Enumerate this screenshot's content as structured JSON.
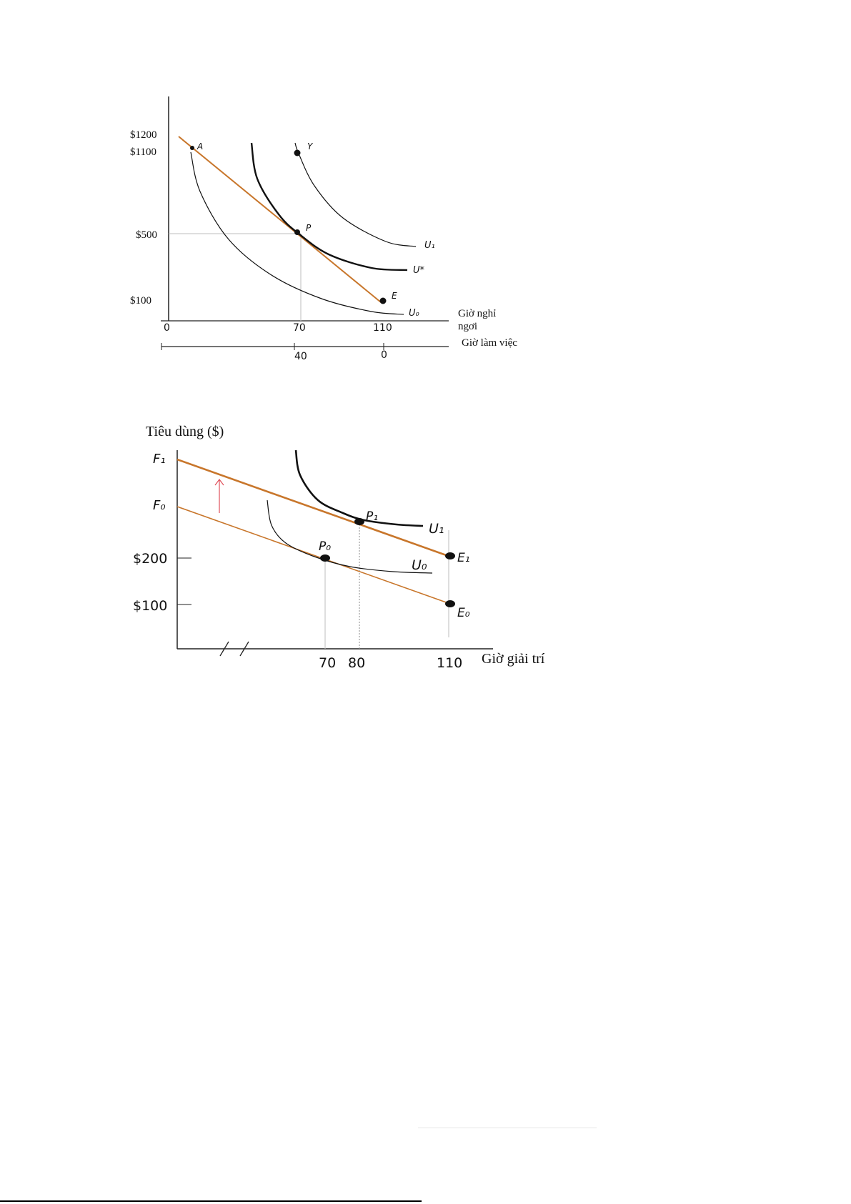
{
  "colors": {
    "budget_line": "#c8762b",
    "curve": "#111111",
    "guide": "#bdbdbd",
    "arrow": "#e0505a"
  },
  "chart_data": [
    {
      "type": "line",
      "title": "",
      "xlabel": "Giờ nghỉ ngơi",
      "xlabel2": "Giờ làm việc",
      "ylabel": "",
      "y_ticks": [
        "$1200",
        "$1100",
        "$500",
        "$100"
      ],
      "x_ticks": [
        "0",
        "70",
        "110"
      ],
      "x2_ticks": [
        "40",
        "0"
      ],
      "series": [
        {
          "name": "",
          "kind": "budget",
          "x": [
            5,
            110
          ],
          "y": [
            1200,
            100
          ]
        },
        {
          "name": "U₁",
          "kind": "indifference",
          "x": [
            70,
            80,
            95,
            110,
            125
          ],
          "y": [
            1100,
            800,
            600,
            480,
            430
          ]
        },
        {
          "name": "U*",
          "kind": "indifference",
          "x": [
            43,
            55,
            70,
            90,
            120
          ],
          "y": [
            1150,
            800,
            500,
            360,
            300
          ]
        },
        {
          "name": "U₀",
          "kind": "indifference",
          "x": [
            12,
            30,
            60,
            90,
            120
          ],
          "y": [
            1100,
            600,
            300,
            150,
            90
          ]
        }
      ],
      "points": [
        {
          "label": "A",
          "x": 12,
          "y": 1100
        },
        {
          "label": "Y",
          "x": 70,
          "y": 1100
        },
        {
          "label": "P",
          "x": 70,
          "y": 500
        },
        {
          "label": "E",
          "x": 110,
          "y": 100
        }
      ]
    },
    {
      "type": "line",
      "title": "",
      "xlabel": "Giờ giải trí",
      "ylabel": "Tiêu dùng ($)",
      "y_ticks": [
        "F₁",
        "F₀",
        "$200",
        "$100"
      ],
      "x_ticks": [
        "70",
        "80",
        "110"
      ],
      "series": [
        {
          "name": "",
          "kind": "budget",
          "label": "F₁ → E₁",
          "x": [
            0,
            110
          ],
          "y": [
            400,
            200
          ]
        },
        {
          "name": "",
          "kind": "budget",
          "label": "F₀ → E₀",
          "x": [
            0,
            110
          ],
          "y": [
            300,
            100
          ]
        },
        {
          "name": "U₁",
          "kind": "indifference",
          "x": [
            55,
            65,
            80,
            100
          ],
          "y": [
            420,
            310,
            260,
            250
          ]
        },
        {
          "name": "U₀",
          "kind": "indifference",
          "x": [
            40,
            50,
            70,
            100
          ],
          "y": [
            350,
            250,
            200,
            180
          ]
        }
      ],
      "points": [
        {
          "label": "P₁",
          "x": 80,
          "y": 260
        },
        {
          "label": "P₀",
          "x": 70,
          "y": 200
        },
        {
          "label": "E₁",
          "x": 110,
          "y": 200
        },
        {
          "label": "E₀",
          "x": 110,
          "y": 100
        }
      ]
    }
  ]
}
